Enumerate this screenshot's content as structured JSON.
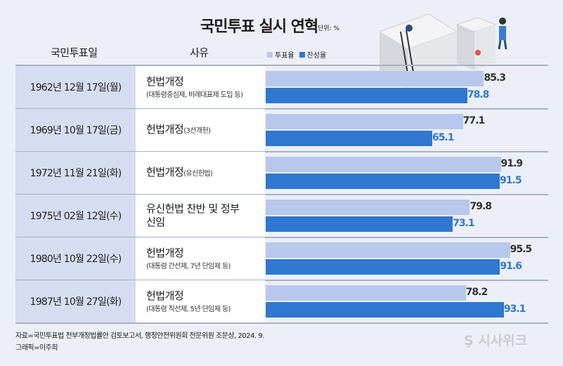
{
  "title": "국민투표 실시 연혁",
  "unit": "단위: %",
  "columns": {
    "date": "국민투표일",
    "reason": "사유"
  },
  "chart_data": {
    "type": "bar",
    "orientation": "horizontal",
    "title": "국민투표 실시 연혁",
    "unit": "%",
    "legend_position": "top",
    "categories": [
      "1962년 12월 17일(월)",
      "1969년 10월 17일(금)",
      "1972년 11월 21일(화)",
      "1975년 02월 12일(수)",
      "1980년 10월 22일(수)",
      "1987년 10월 27일(화)"
    ],
    "series": [
      {
        "name": "투표율",
        "color": "#b7c8ec",
        "values": [
          85.3,
          77.1,
          91.9,
          79.8,
          95.5,
          78.2
        ]
      },
      {
        "name": "찬성율",
        "color": "#2f77d0",
        "values": [
          78.8,
          65.1,
          91.5,
          73.1,
          91.6,
          93.1
        ]
      }
    ],
    "xlim": [
      0,
      100
    ]
  },
  "rows": [
    {
      "date": "1962년 12월 17일(월)",
      "reason": "헌법개정",
      "note": "(대통령중심제, 비례대표제 도입 등)",
      "note_inline": false
    },
    {
      "date": "1969년 10월 17일(금)",
      "reason": "헌법개정",
      "note": "(3선개헌)",
      "note_inline": true
    },
    {
      "date": "1972년 11월 21일(화)",
      "reason": "헌법개정",
      "note": "(유신헌법)",
      "note_inline": true
    },
    {
      "date": "1975년 02월 12일(수)",
      "reason": "유신헌법 찬반 및 정부 신임",
      "note": "",
      "note_inline": false
    },
    {
      "date": "1980년 10월 22일(수)",
      "reason": "헌법개정",
      "note": "(대통령 간선제, 7년 단임제 등)",
      "note_inline": false
    },
    {
      "date": "1987년 10월 27일(화)",
      "reason": "헌법개정",
      "note": "(대통령 직선제, 5년 단임제 등)",
      "note_inline": false
    }
  ],
  "source": "자료=국민투표법 전부개정법률안 검토보고서, 행정안전위원회 전문위원 조문상, 2024. 9.",
  "credit": "그래픽=이주희",
  "logo": "시사위크"
}
